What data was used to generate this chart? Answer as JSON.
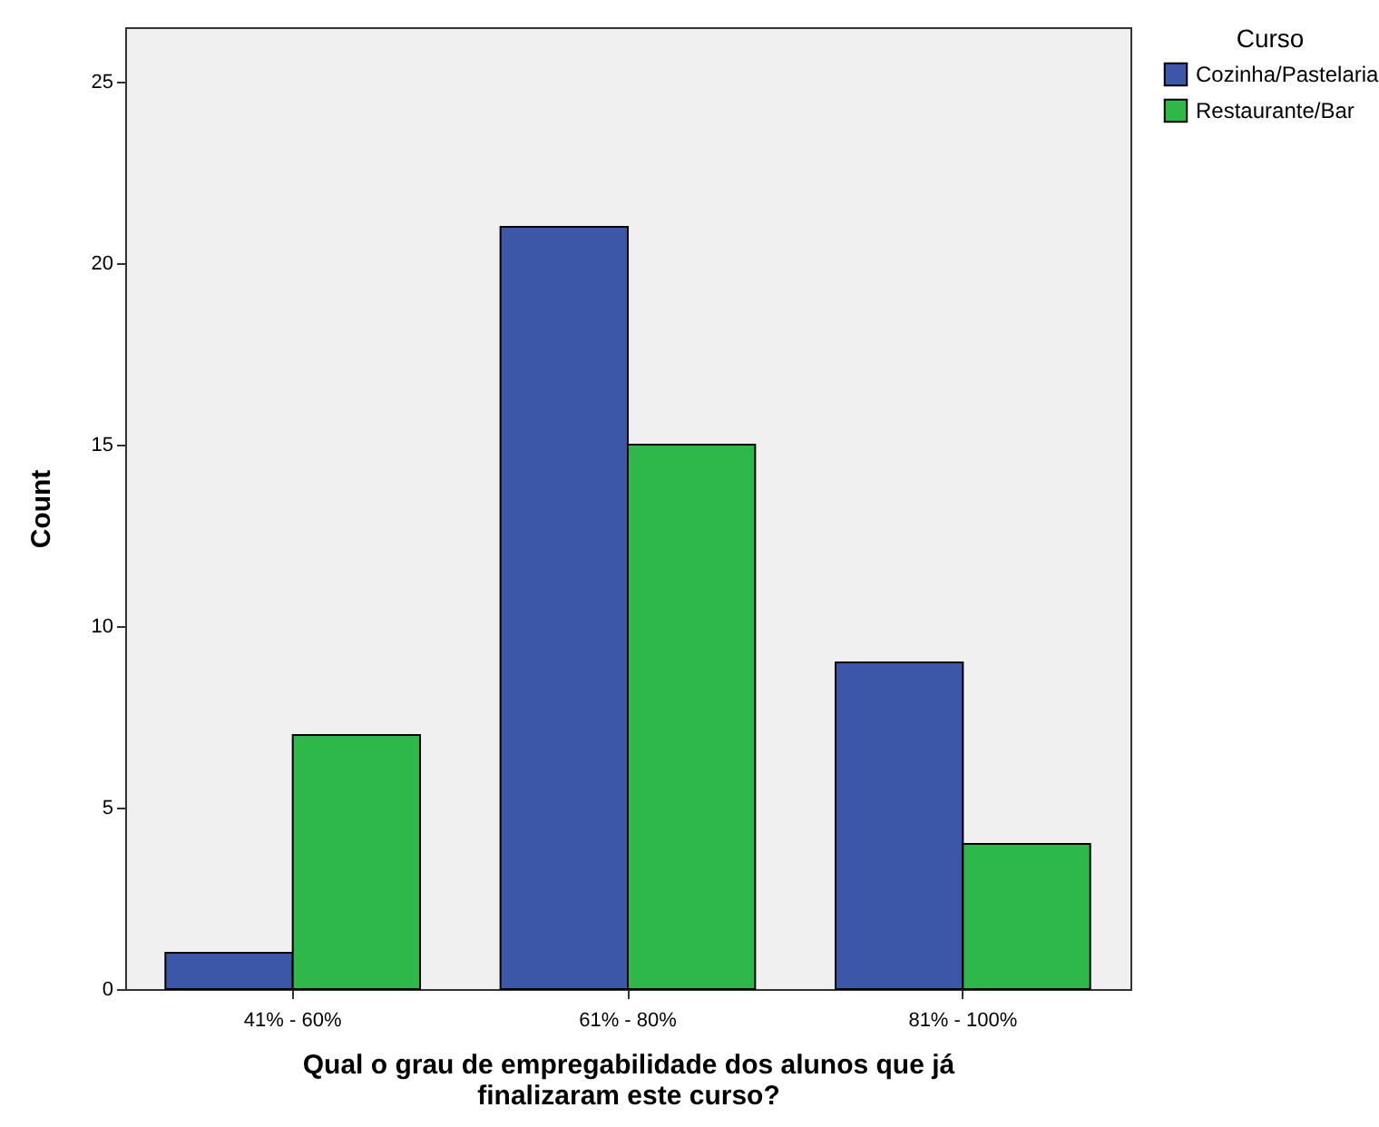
{
  "chart_data": {
    "type": "bar",
    "xlabel": "Qual o grau de empregabilidade dos alunos que já finalizaram este curso?",
    "ylabel": "Count",
    "legend_title": "Curso",
    "categories": [
      "41% - 60%",
      "61% - 80%",
      "81% - 100%"
    ],
    "series": [
      {
        "name": "Cozinha/Pastelaria",
        "color": "#3d57a8",
        "values": [
          1,
          21,
          9
        ]
      },
      {
        "name": "Restaurante/Bar",
        "color": "#2fb84a",
        "values": [
          7,
          15,
          4
        ]
      }
    ],
    "ylim": [
      0,
      26.5
    ],
    "yticks": [
      0,
      5,
      10,
      15,
      20,
      25
    ],
    "grid": false,
    "legend": "top right"
  }
}
